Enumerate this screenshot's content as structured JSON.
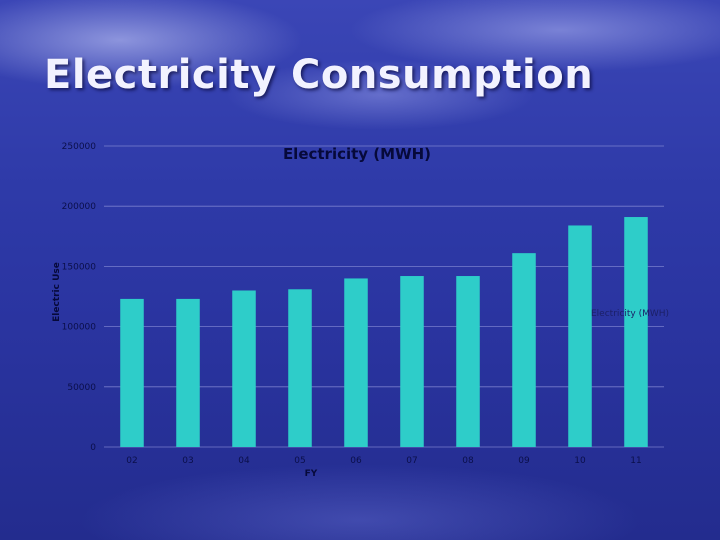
{
  "slide": {
    "title": "Electricity Consumption"
  },
  "colors": {
    "bar": "#2ecdc9",
    "gridline": "#8a90d8",
    "text": "#0b0f4a"
  },
  "chart_data": {
    "type": "bar",
    "title": "Electricity (MWH)",
    "xlabel": "FY",
    "ylabel": "Electric Use",
    "categories": [
      "02",
      "03",
      "04",
      "05",
      "06",
      "07",
      "08",
      "09",
      "10",
      "11"
    ],
    "series": [
      {
        "name": "Electricity (MWH)",
        "values": [
          123000,
          123000,
          130000,
          131000,
          140000,
          142000,
          142000,
          161000,
          184000,
          191000
        ]
      }
    ],
    "ylim": [
      0,
      250000
    ],
    "yticks": [
      "0",
      "50000",
      "100000",
      "150000",
      "200000",
      "250000"
    ],
    "grid": true,
    "legend": "right"
  }
}
